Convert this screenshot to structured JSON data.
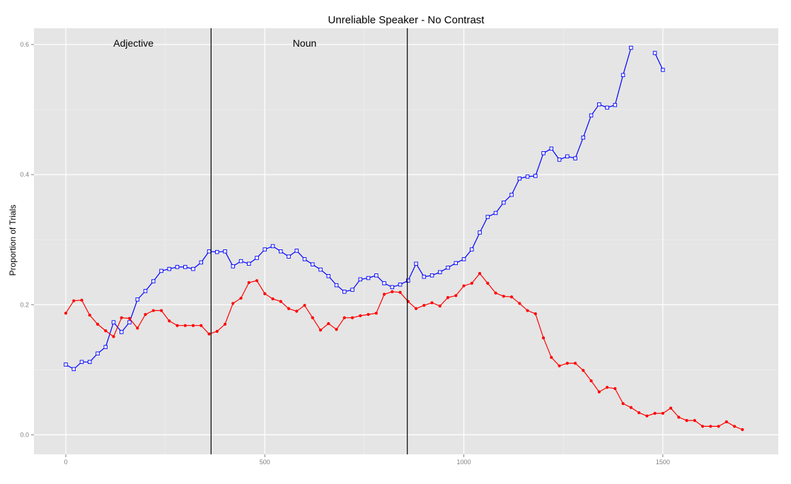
{
  "chart_data": {
    "type": "line",
    "title": "Unreliable Speaker - No Contrast",
    "xlabel": "",
    "ylabel": "Proportion of Trials",
    "xlim": [
      -80,
      1790
    ],
    "ylim": [
      -0.03,
      0.625
    ],
    "x_ticks": [
      0,
      500,
      1000,
      1500
    ],
    "y_ticks": [
      0.0,
      0.2,
      0.4,
      0.6
    ],
    "x_tick_labels": [
      "0",
      "500",
      "1000",
      "1500"
    ],
    "y_tick_labels": [
      "0.0",
      "0.2",
      "0.4",
      "0.6"
    ],
    "grid": true,
    "vlines": [
      365,
      858
    ],
    "annotations": [
      {
        "label": "Adjective",
        "x": 170,
        "y": 0.597
      },
      {
        "label": "Noun",
        "x": 600,
        "y": 0.597
      }
    ],
    "series": [
      {
        "color": "#0000ff",
        "marker": "square-open",
        "x": [
          0,
          20,
          40,
          60,
          80,
          100,
          120,
          140,
          160,
          180,
          200,
          220,
          240,
          260,
          280,
          300,
          320,
          340,
          360,
          380,
          400,
          420,
          440,
          460,
          480,
          500,
          520,
          540,
          560,
          580,
          600,
          620,
          640,
          660,
          680,
          700,
          720,
          740,
          760,
          780,
          800,
          820,
          840,
          860,
          880,
          900,
          920,
          940,
          960,
          980,
          1000,
          1020,
          1040,
          1060,
          1080,
          1100,
          1120,
          1140,
          1160,
          1180,
          1200,
          1220,
          1240,
          1260,
          1280,
          1300,
          1320,
          1340,
          1360,
          1380,
          1400,
          1420,
          1440,
          1460,
          1480,
          1500
        ],
        "values": [
          0.108,
          0.101,
          0.112,
          0.112,
          0.125,
          0.135,
          0.173,
          0.158,
          0.173,
          0.208,
          0.221,
          0.236,
          0.252,
          0.255,
          0.258,
          0.258,
          0.255,
          0.265,
          0.282,
          0.281,
          0.282,
          0.259,
          0.267,
          0.263,
          0.272,
          0.285,
          0.29,
          0.282,
          0.274,
          0.283,
          0.27,
          0.262,
          0.254,
          0.244,
          0.23,
          0.22,
          0.223,
          0.239,
          0.241,
          0.245,
          0.233,
          0.227,
          0.231,
          0.237,
          0.263,
          0.243,
          0.245,
          0.25,
          0.257,
          0.264,
          0.27,
          0.285,
          0.311,
          0.335,
          0.341,
          0.357,
          0.369,
          0.394,
          0.397,
          0.398,
          0.433,
          0.44,
          0.423,
          0.428,
          0.425,
          0.457,
          0.491,
          0.508,
          0.503,
          0.507,
          0.553,
          0.595,
          null,
          null,
          0.587,
          0.561
        ]
      },
      {
        "color": "#ff0000",
        "marker": "dot",
        "x": [
          0,
          20,
          40,
          60,
          80,
          100,
          120,
          140,
          160,
          180,
          200,
          220,
          240,
          260,
          280,
          300,
          320,
          340,
          360,
          380,
          400,
          420,
          440,
          460,
          480,
          500,
          520,
          540,
          560,
          580,
          600,
          620,
          640,
          660,
          680,
          700,
          720,
          740,
          760,
          780,
          800,
          820,
          840,
          860,
          880,
          900,
          920,
          940,
          960,
          980,
          1000,
          1020,
          1040,
          1060,
          1080,
          1100,
          1120,
          1140,
          1160,
          1180,
          1200,
          1220,
          1240,
          1260,
          1280,
          1300,
          1320,
          1340,
          1360,
          1380,
          1400,
          1420,
          1440,
          1460,
          1480,
          1500,
          1520,
          1540,
          1560,
          1580,
          1600,
          1620,
          1640,
          1660,
          1680,
          1700
        ],
        "values": [
          0.187,
          0.206,
          0.207,
          0.184,
          0.17,
          0.16,
          0.151,
          0.18,
          0.179,
          0.164,
          0.185,
          0.191,
          0.191,
          0.175,
          0.168,
          0.168,
          0.168,
          0.168,
          0.155,
          0.159,
          0.17,
          0.202,
          0.21,
          0.234,
          0.237,
          0.217,
          0.209,
          0.205,
          0.194,
          0.19,
          0.199,
          0.18,
          0.161,
          0.171,
          0.162,
          0.18,
          0.18,
          0.183,
          0.185,
          0.187,
          0.216,
          0.22,
          0.219,
          0.205,
          0.194,
          0.199,
          0.203,
          0.198,
          0.211,
          0.214,
          0.229,
          0.233,
          0.248,
          0.233,
          0.218,
          0.213,
          0.212,
          0.202,
          0.191,
          0.186,
          0.149,
          0.119,
          0.106,
          0.11,
          0.11,
          0.099,
          0.083,
          0.066,
          0.073,
          0.071,
          0.048,
          0.042,
          0.034,
          0.029,
          0.033,
          0.033,
          0.041,
          0.027,
          0.022,
          0.022,
          0.013,
          0.013,
          0.013,
          0.02,
          0.013,
          0.008
        ]
      }
    ]
  }
}
